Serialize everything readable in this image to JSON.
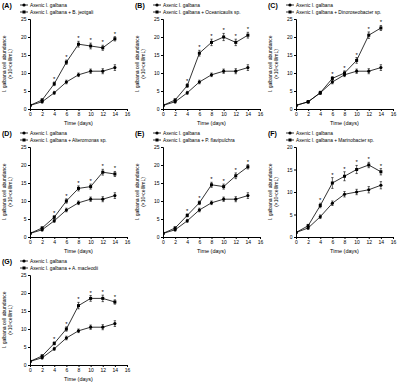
{
  "chart_data": [
    {
      "type": "line",
      "title": "(A)",
      "x_label": "Time (days)",
      "y_label": "I. galbana cell abundance (×10⁶cell/mL)",
      "x": [
        0,
        2,
        4,
        6,
        8,
        10,
        12,
        14
      ],
      "xlim": [
        0,
        16
      ],
      "xticks": [
        0,
        2,
        4,
        6,
        8,
        10,
        12,
        14,
        16
      ],
      "ylim": [
        0,
        25
      ],
      "yticks": [
        0,
        5,
        10,
        15,
        20,
        25
      ],
      "legend": "top",
      "series": [
        {
          "name": "Axenic I. galbana",
          "color": "#000000",
          "marker": "circle",
          "line_style": "solid",
          "values": [
            1,
            2,
            4.5,
            7.5,
            9.5,
            10.5,
            10.5,
            11.5
          ],
          "errors": [
            0.2,
            0.3,
            0.4,
            0.5,
            0.5,
            0.6,
            0.7,
            0.8
          ]
        },
        {
          "name": "Axenic I. galbana + B. jeotgali",
          "color": "#000000",
          "marker": "square",
          "line_style": "solid",
          "values": [
            1,
            2.5,
            7,
            13,
            18,
            17.5,
            17,
            19.5
          ],
          "errors": [
            0.2,
            0.3,
            0.5,
            0.6,
            0.8,
            0.8,
            0.7,
            0.6
          ]
        }
      ],
      "annotations": [
        {
          "x": 4,
          "text": "*"
        },
        {
          "x": 6,
          "text": "*"
        },
        {
          "x": 8,
          "text": "*"
        },
        {
          "x": 10,
          "text": "*"
        },
        {
          "x": 12,
          "text": "*"
        },
        {
          "x": 14,
          "text": "*"
        }
      ]
    },
    {
      "type": "line",
      "title": "(B)",
      "x_label": "Time (days)",
      "y_label": "I. galbana cell abundance (×10⁶cell/mL)",
      "x": [
        0,
        2,
        4,
        6,
        8,
        10,
        12,
        14
      ],
      "xlim": [
        0,
        16
      ],
      "xticks": [
        0,
        2,
        4,
        6,
        8,
        10,
        12,
        14,
        16
      ],
      "ylim": [
        0,
        25
      ],
      "yticks": [
        0,
        5,
        10,
        15,
        20,
        25
      ],
      "legend": "top",
      "series": [
        {
          "name": "Axenic I. galbana",
          "color": "#000000",
          "marker": "circle",
          "line_style": "solid",
          "values": [
            1,
            2,
            4.5,
            7.5,
            9.5,
            10.5,
            10.5,
            11.5
          ],
          "errors": [
            0.2,
            0.3,
            0.4,
            0.5,
            0.5,
            0.6,
            0.7,
            0.8
          ]
        },
        {
          "name": "Axenic I. galbana + Oceanicaulis sp.",
          "color": "#000000",
          "marker": "square",
          "line_style": "solid",
          "values": [
            1,
            2.5,
            6.5,
            15.5,
            18.5,
            20,
            18.5,
            20.5
          ],
          "errors": [
            0.2,
            0.3,
            0.5,
            0.8,
            0.9,
            1,
            0.9,
            0.8
          ]
        }
      ],
      "annotations": [
        {
          "x": 4,
          "text": "*"
        },
        {
          "x": 6,
          "text": "*"
        },
        {
          "x": 8,
          "text": "*"
        },
        {
          "x": 10,
          "text": "*"
        },
        {
          "x": 12,
          "text": "*"
        },
        {
          "x": 14,
          "text": "*"
        }
      ]
    },
    {
      "type": "line",
      "title": "(C)",
      "x_label": "Time (days)",
      "y_label": "I. galbana cell abundance (×10⁶cell/mL)",
      "x": [
        0,
        2,
        4,
        6,
        8,
        10,
        12,
        14
      ],
      "xlim": [
        0,
        16
      ],
      "xticks": [
        0,
        2,
        4,
        6,
        8,
        10,
        12,
        14,
        16
      ],
      "ylim": [
        0,
        25
      ],
      "yticks": [
        0,
        5,
        10,
        15,
        20,
        25
      ],
      "legend": "top",
      "series": [
        {
          "name": "Axenic I. galbana",
          "color": "#000000",
          "marker": "circle",
          "line_style": "solid",
          "values": [
            1,
            2,
            4.5,
            7.5,
            9.5,
            10.5,
            10.5,
            11.5
          ],
          "errors": [
            0.2,
            0.3,
            0.4,
            0.5,
            0.5,
            0.6,
            0.7,
            0.8
          ]
        },
        {
          "name": "Axenic I. galbana + Dinoroseobacter sp.",
          "color": "#000000",
          "marker": "square",
          "line_style": "solid",
          "values": [
            1,
            2,
            4.5,
            8.5,
            10,
            13.5,
            20.5,
            22.5
          ],
          "errors": [
            0.2,
            0.3,
            0.4,
            0.5,
            0.6,
            0.8,
            0.9,
            0.7
          ]
        }
      ],
      "annotations": [
        {
          "x": 6,
          "text": "*"
        },
        {
          "x": 8,
          "text": "*"
        },
        {
          "x": 10,
          "text": "*"
        },
        {
          "x": 12,
          "text": "*"
        },
        {
          "x": 14,
          "text": "*"
        }
      ]
    },
    {
      "type": "line",
      "title": "(D)",
      "x_label": "Time (days)",
      "y_label": "I. galbana cell abundance (×10⁶cell/mL)",
      "x": [
        0,
        2,
        4,
        6,
        8,
        10,
        12,
        14
      ],
      "xlim": [
        0,
        16
      ],
      "xticks": [
        0,
        2,
        4,
        6,
        8,
        10,
        12,
        14,
        16
      ],
      "ylim": [
        0,
        25
      ],
      "yticks": [
        0,
        5,
        10,
        15,
        20,
        25
      ],
      "legend": "top",
      "series": [
        {
          "name": "Axenic I. galbana",
          "color": "#000000",
          "marker": "circle",
          "line_style": "solid",
          "values": [
            1,
            2,
            4.5,
            7.5,
            9.5,
            10.5,
            10.5,
            11.5
          ],
          "errors": [
            0.2,
            0.3,
            0.4,
            0.5,
            0.5,
            0.6,
            0.7,
            0.8
          ]
        },
        {
          "name": "Axenic I. galbana + Alteromonas sp.",
          "color": "#000000",
          "marker": "square",
          "line_style": "solid",
          "values": [
            1,
            2.5,
            5.5,
            10,
            13.5,
            14,
            18,
            17.5
          ],
          "errors": [
            0.2,
            0.3,
            0.4,
            0.6,
            0.7,
            0.7,
            0.8,
            0.7
          ]
        }
      ],
      "annotations": [
        {
          "x": 4,
          "text": "*"
        },
        {
          "x": 6,
          "text": "*"
        },
        {
          "x": 8,
          "text": "*"
        },
        {
          "x": 10,
          "text": "*"
        },
        {
          "x": 12,
          "text": "*"
        },
        {
          "x": 14,
          "text": "*"
        }
      ]
    },
    {
      "type": "line",
      "title": "(E)",
      "x_label": "Time (days)",
      "y_label": "I. galbana cell abundance (×10⁶cell/mL)",
      "x": [
        0,
        2,
        4,
        6,
        8,
        10,
        12,
        14
      ],
      "xlim": [
        0,
        16
      ],
      "xticks": [
        0,
        2,
        4,
        6,
        8,
        10,
        12,
        14,
        16
      ],
      "ylim": [
        0,
        25
      ],
      "yticks": [
        0,
        5,
        10,
        15,
        20,
        25
      ],
      "legend": "top",
      "series": [
        {
          "name": "Axenic I. galbana",
          "color": "#000000",
          "marker": "circle",
          "line_style": "solid",
          "values": [
            1,
            2,
            4.5,
            7.5,
            9.5,
            10.5,
            10.5,
            11.5
          ],
          "errors": [
            0.2,
            0.3,
            0.4,
            0.5,
            0.5,
            0.6,
            0.7,
            0.8
          ]
        },
        {
          "name": "Axenic I. galbana + P. flavipulchra",
          "color": "#000000",
          "marker": "square",
          "line_style": "solid",
          "values": [
            1,
            2.5,
            6,
            9.5,
            14.5,
            14,
            17,
            19.5
          ],
          "errors": [
            0.2,
            0.3,
            0.4,
            0.5,
            0.7,
            0.7,
            0.8,
            0.6
          ]
        }
      ],
      "annotations": [
        {
          "x": 4,
          "text": "*"
        },
        {
          "x": 6,
          "text": "*"
        },
        {
          "x": 8,
          "text": "*"
        },
        {
          "x": 10,
          "text": "*"
        },
        {
          "x": 12,
          "text": "*"
        },
        {
          "x": 14,
          "text": "*"
        }
      ]
    },
    {
      "type": "line",
      "title": "(F)",
      "x_label": "Time (days)",
      "y_label": "I. galbana cell abundance (×10⁶cell/mL)",
      "x": [
        0,
        2,
        4,
        6,
        8,
        10,
        12,
        14
      ],
      "xlim": [
        0,
        16
      ],
      "xticks": [
        0,
        2,
        4,
        6,
        8,
        10,
        12,
        14,
        16
      ],
      "ylim": [
        0,
        20
      ],
      "yticks": [
        0,
        5,
        10,
        15,
        20
      ],
      "legend": "top",
      "series": [
        {
          "name": "Axenic I. galbana",
          "color": "#000000",
          "marker": "circle",
          "line_style": "solid",
          "values": [
            1,
            2,
            4.5,
            7.5,
            9.5,
            10,
            10.5,
            11.5
          ],
          "errors": [
            0.2,
            0.3,
            0.4,
            0.5,
            0.6,
            0.6,
            0.7,
            0.8
          ]
        },
        {
          "name": "Axenic I. galbana + Marinobacter sp.",
          "color": "#000000",
          "marker": "square",
          "line_style": "solid",
          "values": [
            1,
            2.5,
            7,
            12,
            13.5,
            15,
            16,
            14.5
          ],
          "errors": [
            0.2,
            0.3,
            0.5,
            1.2,
            1.0,
            0.9,
            0.6,
            0.7
          ]
        }
      ],
      "annotations": [
        {
          "x": 4,
          "text": "*"
        },
        {
          "x": 6,
          "text": "*"
        },
        {
          "x": 8,
          "text": "*"
        },
        {
          "x": 10,
          "text": "*"
        },
        {
          "x": 12,
          "text": "*"
        },
        {
          "x": 14,
          "text": "*"
        }
      ]
    },
    {
      "type": "line",
      "title": "(G)",
      "x_label": "Time (days)",
      "y_label": "I. galbana cell abundance (×10⁶cell/mL)",
      "x": [
        0,
        2,
        4,
        6,
        8,
        10,
        12,
        14
      ],
      "xlim": [
        0,
        16
      ],
      "xticks": [
        0,
        2,
        4,
        6,
        8,
        10,
        12,
        14,
        16
      ],
      "ylim": [
        0,
        25
      ],
      "yticks": [
        0,
        5,
        10,
        15,
        20,
        25
      ],
      "legend": "top",
      "series": [
        {
          "name": "Axenic I. galbana",
          "color": "#000000",
          "marker": "circle",
          "line_style": "solid",
          "values": [
            1,
            2,
            4.5,
            7.5,
            9.5,
            10.5,
            10.5,
            11.5
          ],
          "errors": [
            0.2,
            0.3,
            0.4,
            0.5,
            0.5,
            0.6,
            0.7,
            0.8
          ]
        },
        {
          "name": "Axenic I. galbana + A. macleodii",
          "color": "#000000",
          "marker": "square",
          "line_style": "solid",
          "values": [
            1,
            2.5,
            6,
            10,
            16.5,
            18.5,
            18.5,
            17.5
          ],
          "errors": [
            0.2,
            0.3,
            0.4,
            0.6,
            0.9,
            0.8,
            0.9,
            0.6
          ]
        }
      ],
      "annotations": [
        {
          "x": 4,
          "text": "*"
        },
        {
          "x": 6,
          "text": "*"
        },
        {
          "x": 8,
          "text": "*"
        },
        {
          "x": 10,
          "text": "*"
        },
        {
          "x": 12,
          "text": "*"
        },
        {
          "x": 14,
          "text": "*"
        }
      ]
    }
  ]
}
